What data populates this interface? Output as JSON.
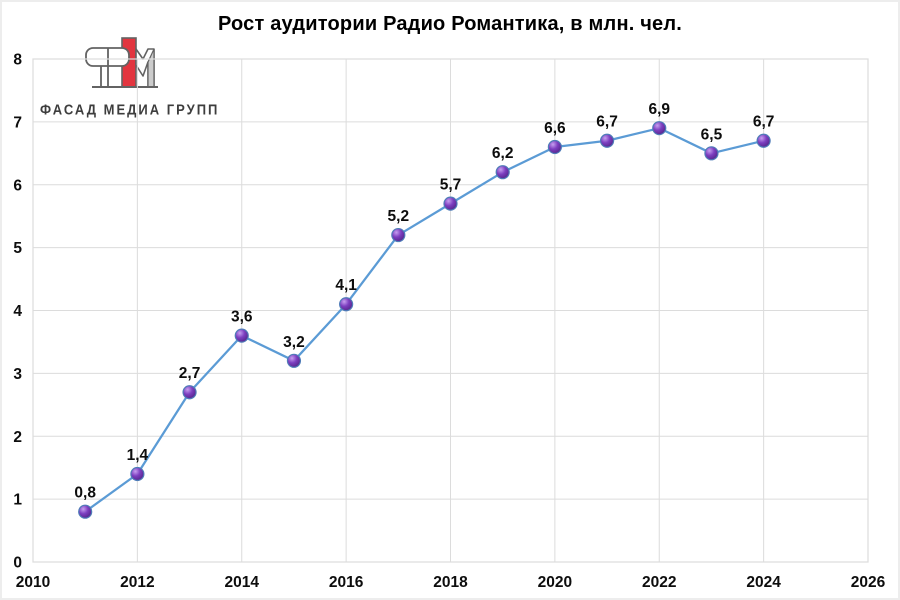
{
  "logo": {
    "text": "ФАСАД МЕДИА ГРУПП",
    "accent_red": "#e2353f",
    "outline_gray": "#636363"
  },
  "chart_data": {
    "type": "line",
    "title": "Рост аудитории Радио Романтика, в млн. чел.",
    "x": [
      2011,
      2012,
      2013,
      2014,
      2015,
      2016,
      2017,
      2018,
      2019,
      2020,
      2021,
      2022,
      2023,
      2024
    ],
    "values": [
      0.8,
      1.4,
      2.7,
      3.6,
      3.2,
      4.1,
      5.2,
      5.7,
      6.2,
      6.6,
      6.7,
      6.9,
      6.5,
      6.7
    ],
    "labels": [
      "0,8",
      "1,4",
      "2,7",
      "3,6",
      "3,2",
      "4,1",
      "5,2",
      "5,7",
      "6,2",
      "6,6",
      "6,7",
      "6,9",
      "6,5",
      "6,7"
    ],
    "xlabel": "",
    "ylabel": "",
    "x_ticks": [
      2010,
      2012,
      2014,
      2016,
      2018,
      2020,
      2022,
      2024,
      2026
    ],
    "y_ticks": [
      0,
      1,
      2,
      3,
      4,
      5,
      6,
      7,
      8
    ],
    "xlim": [
      2010,
      2026
    ],
    "ylim": [
      0,
      8
    ],
    "grid": true,
    "legend": false,
    "decimal_separator": ",",
    "line_color": "#5B9BD5",
    "marker_colors": {
      "highlight": "#c79ff0",
      "mid": "#7d3fc0",
      "dark": "#4e2184",
      "stroke": "#4f7cb8"
    },
    "grid_color": "#dcdcdc",
    "tick_color": "#0d0d0d"
  }
}
